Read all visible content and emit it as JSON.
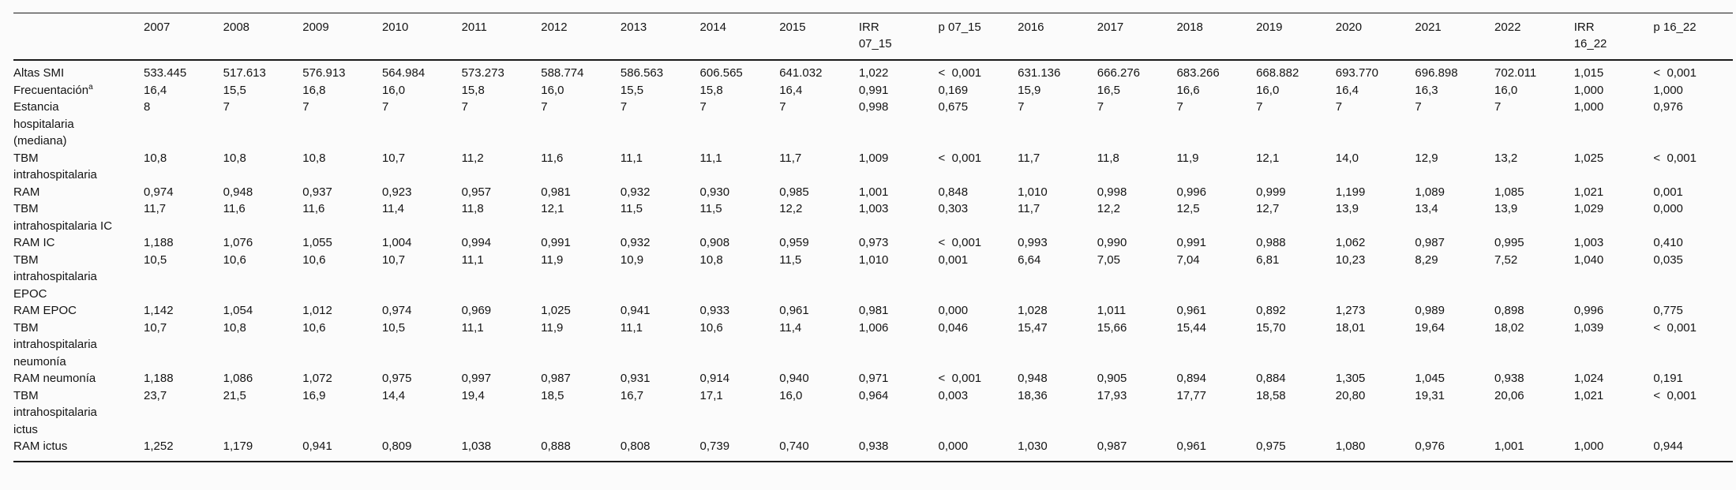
{
  "table": {
    "columns": [
      "",
      "2007",
      "2008",
      "2009",
      "2010",
      "2011",
      "2012",
      "2013",
      "2014",
      "2015",
      "IRR\n07_15",
      "p 07_15",
      "2016",
      "2017",
      "2018",
      "2019",
      "2020",
      "2021",
      "2022",
      "IRR\n16_22",
      "p 16_22"
    ],
    "rows": [
      {
        "label": "Altas SMI",
        "values": [
          "533.445",
          "517.613",
          "576.913",
          "564.984",
          "573.273",
          "588.774",
          "586.563",
          "606.565",
          "641.032",
          "1,022",
          "<  0,001",
          "631.136",
          "666.276",
          "683.266",
          "668.882",
          "693.770",
          "696.898",
          "702.011",
          "1,015",
          "<  0,001"
        ]
      },
      {
        "label": "Frecuentación",
        "sup": "a",
        "values": [
          "16,4",
          "15,5",
          "16,8",
          "16,0",
          "15,8",
          "16,0",
          "15,5",
          "15,8",
          "16,4",
          "0,991",
          "0,169",
          "15,9",
          "16,5",
          "16,6",
          "16,0",
          "16,4",
          "16,3",
          "16,0",
          "1,000",
          "1,000"
        ]
      },
      {
        "label": "Estancia hospitalaria (mediana)",
        "values": [
          "8",
          "7",
          "7",
          "7",
          "7",
          "7",
          "7",
          "7",
          "7",
          "0,998",
          "0,675",
          "7",
          "7",
          "7",
          "7",
          "7",
          "7",
          "7",
          "1,000",
          "0,976"
        ]
      },
      {
        "label": "TBM intrahospitalaria",
        "values": [
          "10,8",
          "10,8",
          "10,8",
          "10,7",
          "11,2",
          "11,6",
          "11,1",
          "11,1",
          "11,7",
          "1,009",
          "<  0,001",
          "11,7",
          "11,8",
          "11,9",
          "12,1",
          "14,0",
          "12,9",
          "13,2",
          "1,025",
          "<  0,001"
        ]
      },
      {
        "label": "RAM",
        "values": [
          "0,974",
          "0,948",
          "0,937",
          "0,923",
          "0,957",
          "0,981",
          "0,932",
          "0,930",
          "0,985",
          "1,001",
          "0,848",
          "1,010",
          "0,998",
          "0,996",
          "0,999",
          "1,199",
          "1,089",
          "1,085",
          "1,021",
          "0,001"
        ]
      },
      {
        "label": "TBM intrahospitalaria IC",
        "values": [
          "11,7",
          "11,6",
          "11,6",
          "11,4",
          "11,8",
          "12,1",
          "11,5",
          "11,5",
          "12,2",
          "1,003",
          "0,303",
          "11,7",
          "12,2",
          "12,5",
          "12,7",
          "13,9",
          "13,4",
          "13,9",
          "1,029",
          "0,000"
        ]
      },
      {
        "label": "RAM IC",
        "values": [
          "1,188",
          "1,076",
          "1,055",
          "1,004",
          "0,994",
          "0,991",
          "0,932",
          "0,908",
          "0,959",
          "0,973",
          "<  0,001",
          "0,993",
          "0,990",
          "0,991",
          "0,988",
          "1,062",
          "0,987",
          "0,995",
          "1,003",
          "0,410"
        ]
      },
      {
        "label": "TBM intrahospitalaria EPOC",
        "values": [
          "10,5",
          "10,6",
          "10,6",
          "10,7",
          "11,1",
          "11,9",
          "10,9",
          "10,8",
          "11,5",
          "1,010",
          "0,001",
          "6,64",
          "7,05",
          "7,04",
          "6,81",
          "10,23",
          "8,29",
          "7,52",
          "1,040",
          "0,035"
        ]
      },
      {
        "label": "RAM EPOC",
        "values": [
          "1,142",
          "1,054",
          "1,012",
          "0,974",
          "0,969",
          "1,025",
          "0,941",
          "0,933",
          "0,961",
          "0,981",
          "0,000",
          "1,028",
          "1,011",
          "0,961",
          "0,892",
          "1,273",
          "0,989",
          "0,898",
          "0,996",
          "0,775"
        ]
      },
      {
        "label": "TBM intrahospitalaria neumonía",
        "values": [
          "10,7",
          "10,8",
          "10,6",
          "10,5",
          "11,1",
          "11,9",
          "11,1",
          "10,6",
          "11,4",
          "1,006",
          "0,046",
          "15,47",
          "15,66",
          "15,44",
          "15,70",
          "18,01",
          "19,64",
          "18,02",
          "1,039",
          "<  0,001"
        ]
      },
      {
        "label": "RAM neumonía",
        "values": [
          "1,188",
          "1,086",
          "1,072",
          "0,975",
          "0,997",
          "0,987",
          "0,931",
          "0,914",
          "0,940",
          "0,971",
          "<  0,001",
          "0,948",
          "0,905",
          "0,894",
          "0,884",
          "1,305",
          "1,045",
          "0,938",
          "1,024",
          "0,191"
        ]
      },
      {
        "label": "TBM intrahospitalaria ictus",
        "values": [
          "23,7",
          "21,5",
          "16,9",
          "14,4",
          "19,4",
          "18,5",
          "16,7",
          "17,1",
          "16,0",
          "0,964",
          "0,003",
          "18,36",
          "17,93",
          "17,77",
          "18,58",
          "20,80",
          "19,31",
          "20,06",
          "1,021",
          "<  0,001"
        ]
      },
      {
        "label": "RAM ictus",
        "values": [
          "1,252",
          "1,179",
          "0,941",
          "0,809",
          "1,038",
          "0,888",
          "0,808",
          "0,739",
          "0,740",
          "0,938",
          "0,000",
          "1,030",
          "0,987",
          "0,961",
          "0,975",
          "1,080",
          "0,976",
          "1,001",
          "1,000",
          "0,944"
        ]
      }
    ]
  }
}
